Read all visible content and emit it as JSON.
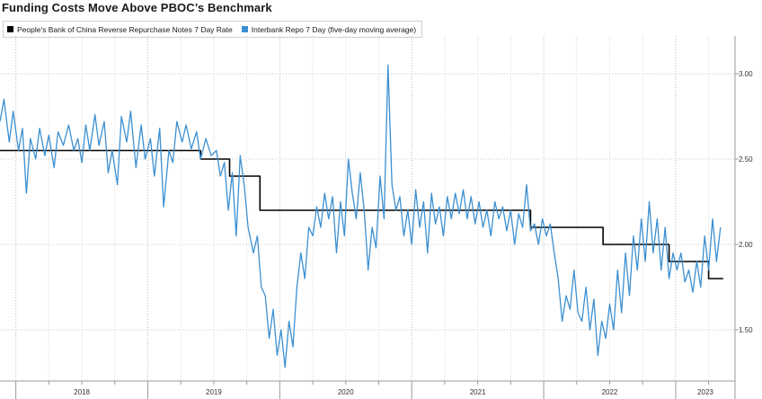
{
  "chart_data": {
    "type": "line",
    "title": "Funding Costs Move Above PBOC’s Benchmark",
    "xlabel": "",
    "ylabel": "",
    "ylim": [
      1.2,
      3.2
    ],
    "yticks": [
      "3.00",
      "2.50",
      "2.00",
      "1.50"
    ],
    "xlim": [
      2017.88,
      2023.45
    ],
    "year_labels": [
      "2018",
      "2019",
      "2020",
      "2021",
      "2022",
      "2023"
    ],
    "grid": true,
    "legend_position": "top-left",
    "series": [
      {
        "name": "People's Bank of China Reverse Repurchase Notes 7 Day Rate",
        "color": "#000000",
        "kind": "step",
        "points": [
          [
            2017.88,
            2.55
          ],
          [
            2019.4,
            2.55
          ],
          [
            2019.4,
            2.5
          ],
          [
            2019.62,
            2.5
          ],
          [
            2019.62,
            2.4
          ],
          [
            2019.85,
            2.4
          ],
          [
            2019.85,
            2.2
          ],
          [
            2021.05,
            2.2
          ],
          [
            2021.05,
            2.2
          ],
          [
            2021.9,
            2.2
          ],
          [
            2021.9,
            2.1
          ],
          [
            2022.07,
            2.1
          ],
          [
            2022.07,
            2.1
          ],
          [
            2022.45,
            2.1
          ],
          [
            2022.45,
            2.0
          ],
          [
            2022.95,
            2.0
          ],
          [
            2022.95,
            1.9
          ],
          [
            2023.25,
            1.9
          ],
          [
            2023.25,
            1.8
          ],
          [
            2023.36,
            1.8
          ]
        ]
      },
      {
        "name": "Interbank Repo 7 Day (five-day moving average)",
        "color": "#3c8fd0",
        "kind": "line",
        "points": [
          [
            2017.88,
            2.72
          ],
          [
            2017.91,
            2.85
          ],
          [
            2017.95,
            2.6
          ],
          [
            2017.98,
            2.78
          ],
          [
            2018.02,
            2.55
          ],
          [
            2018.05,
            2.68
          ],
          [
            2018.08,
            2.3
          ],
          [
            2018.11,
            2.62
          ],
          [
            2018.15,
            2.5
          ],
          [
            2018.18,
            2.68
          ],
          [
            2018.22,
            2.52
          ],
          [
            2018.25,
            2.64
          ],
          [
            2018.29,
            2.45
          ],
          [
            2018.32,
            2.66
          ],
          [
            2018.36,
            2.58
          ],
          [
            2018.4,
            2.7
          ],
          [
            2018.44,
            2.55
          ],
          [
            2018.47,
            2.62
          ],
          [
            2018.5,
            2.48
          ],
          [
            2018.53,
            2.7
          ],
          [
            2018.56,
            2.55
          ],
          [
            2018.6,
            2.76
          ],
          [
            2018.63,
            2.58
          ],
          [
            2018.67,
            2.72
          ],
          [
            2018.7,
            2.42
          ],
          [
            2018.73,
            2.55
          ],
          [
            2018.77,
            2.35
          ],
          [
            2018.8,
            2.75
          ],
          [
            2018.84,
            2.6
          ],
          [
            2018.87,
            2.78
          ],
          [
            2018.91,
            2.45
          ],
          [
            2018.95,
            2.7
          ],
          [
            2018.98,
            2.5
          ],
          [
            2019.02,
            2.62
          ],
          [
            2019.05,
            2.4
          ],
          [
            2019.09,
            2.68
          ],
          [
            2019.12,
            2.22
          ],
          [
            2019.16,
            2.55
          ],
          [
            2019.19,
            2.48
          ],
          [
            2019.22,
            2.72
          ],
          [
            2019.26,
            2.6
          ],
          [
            2019.29,
            2.7
          ],
          [
            2019.33,
            2.56
          ],
          [
            2019.37,
            2.66
          ],
          [
            2019.4,
            2.5
          ],
          [
            2019.44,
            2.62
          ],
          [
            2019.48,
            2.52
          ],
          [
            2019.52,
            2.55
          ],
          [
            2019.55,
            2.4
          ],
          [
            2019.58,
            2.48
          ],
          [
            2019.61,
            2.2
          ],
          [
            2019.64,
            2.42
          ],
          [
            2019.67,
            2.05
          ],
          [
            2019.7,
            2.52
          ],
          [
            2019.73,
            2.35
          ],
          [
            2019.76,
            2.1
          ],
          [
            2019.8,
            1.95
          ],
          [
            2019.83,
            2.05
          ],
          [
            2019.86,
            1.75
          ],
          [
            2019.89,
            1.7
          ],
          [
            2019.92,
            1.45
          ],
          [
            2019.95,
            1.62
          ],
          [
            2019.98,
            1.35
          ],
          [
            2020.01,
            1.5
          ],
          [
            2020.04,
            1.28
          ],
          [
            2020.07,
            1.55
          ],
          [
            2020.1,
            1.4
          ],
          [
            2020.13,
            1.75
          ],
          [
            2020.16,
            1.95
          ],
          [
            2020.19,
            1.8
          ],
          [
            2020.22,
            2.1
          ],
          [
            2020.25,
            2.05
          ],
          [
            2020.28,
            2.22
          ],
          [
            2020.31,
            2.1
          ],
          [
            2020.34,
            2.3
          ],
          [
            2020.37,
            2.15
          ],
          [
            2020.4,
            2.28
          ],
          [
            2020.43,
            1.95
          ],
          [
            2020.46,
            2.25
          ],
          [
            2020.49,
            2.05
          ],
          [
            2020.52,
            2.5
          ],
          [
            2020.55,
            2.3
          ],
          [
            2020.58,
            2.15
          ],
          [
            2020.61,
            2.42
          ],
          [
            2020.64,
            2.2
          ],
          [
            2020.67,
            1.85
          ],
          [
            2020.7,
            2.1
          ],
          [
            2020.73,
            1.98
          ],
          [
            2020.76,
            2.4
          ],
          [
            2020.79,
            2.15
          ],
          [
            2020.82,
            3.05
          ],
          [
            2020.85,
            2.35
          ],
          [
            2020.88,
            2.2
          ],
          [
            2020.91,
            2.28
          ],
          [
            2020.94,
            2.05
          ],
          [
            2020.97,
            2.2
          ],
          [
            2021.0,
            2.0
          ],
          [
            2021.03,
            2.32
          ],
          [
            2021.06,
            2.1
          ],
          [
            2021.09,
            2.25
          ],
          [
            2021.12,
            1.95
          ],
          [
            2021.15,
            2.3
          ],
          [
            2021.18,
            2.12
          ],
          [
            2021.21,
            2.22
          ],
          [
            2021.24,
            2.05
          ],
          [
            2021.27,
            2.28
          ],
          [
            2021.3,
            2.15
          ],
          [
            2021.33,
            2.3
          ],
          [
            2021.36,
            2.18
          ],
          [
            2021.39,
            2.32
          ],
          [
            2021.42,
            2.15
          ],
          [
            2021.45,
            2.28
          ],
          [
            2021.48,
            2.12
          ],
          [
            2021.51,
            2.25
          ],
          [
            2021.54,
            2.1
          ],
          [
            2021.57,
            2.2
          ],
          [
            2021.6,
            2.05
          ],
          [
            2021.63,
            2.25
          ],
          [
            2021.66,
            2.15
          ],
          [
            2021.69,
            2.22
          ],
          [
            2021.72,
            2.08
          ],
          [
            2021.75,
            2.2
          ],
          [
            2021.78,
            2.0
          ],
          [
            2021.81,
            2.18
          ],
          [
            2021.84,
            2.1
          ],
          [
            2021.87,
            2.35
          ],
          [
            2021.9,
            2.08
          ],
          [
            2021.93,
            2.12
          ],
          [
            2021.96,
            2.0
          ],
          [
            2021.99,
            2.15
          ],
          [
            2022.02,
            2.05
          ],
          [
            2022.05,
            2.12
          ],
          [
            2022.08,
            1.95
          ],
          [
            2022.11,
            1.8
          ],
          [
            2022.14,
            1.55
          ],
          [
            2022.17,
            1.7
          ],
          [
            2022.2,
            1.62
          ],
          [
            2022.23,
            1.85
          ],
          [
            2022.26,
            1.6
          ],
          [
            2022.29,
            1.55
          ],
          [
            2022.32,
            1.75
          ],
          [
            2022.35,
            1.5
          ],
          [
            2022.38,
            1.68
          ],
          [
            2022.41,
            1.35
          ],
          [
            2022.44,
            1.55
          ],
          [
            2022.47,
            1.45
          ],
          [
            2022.5,
            1.65
          ],
          [
            2022.53,
            1.5
          ],
          [
            2022.56,
            1.85
          ],
          [
            2022.59,
            1.6
          ],
          [
            2022.62,
            1.95
          ],
          [
            2022.65,
            1.7
          ],
          [
            2022.68,
            2.05
          ],
          [
            2022.71,
            1.85
          ],
          [
            2022.74,
            2.15
          ],
          [
            2022.77,
            1.9
          ],
          [
            2022.8,
            2.25
          ],
          [
            2022.83,
            1.95
          ],
          [
            2022.86,
            2.15
          ],
          [
            2022.89,
            1.85
          ],
          [
            2022.92,
            2.1
          ],
          [
            2022.95,
            1.8
          ],
          [
            2022.98,
            1.95
          ],
          [
            2023.01,
            1.85
          ],
          [
            2023.04,
            1.95
          ],
          [
            2023.07,
            1.78
          ],
          [
            2023.1,
            1.85
          ],
          [
            2023.13,
            1.72
          ],
          [
            2023.16,
            1.9
          ],
          [
            2023.19,
            1.75
          ],
          [
            2023.22,
            2.05
          ],
          [
            2023.25,
            1.85
          ],
          [
            2023.28,
            2.15
          ],
          [
            2023.31,
            1.9
          ],
          [
            2023.34,
            2.1
          ]
        ]
      }
    ]
  }
}
